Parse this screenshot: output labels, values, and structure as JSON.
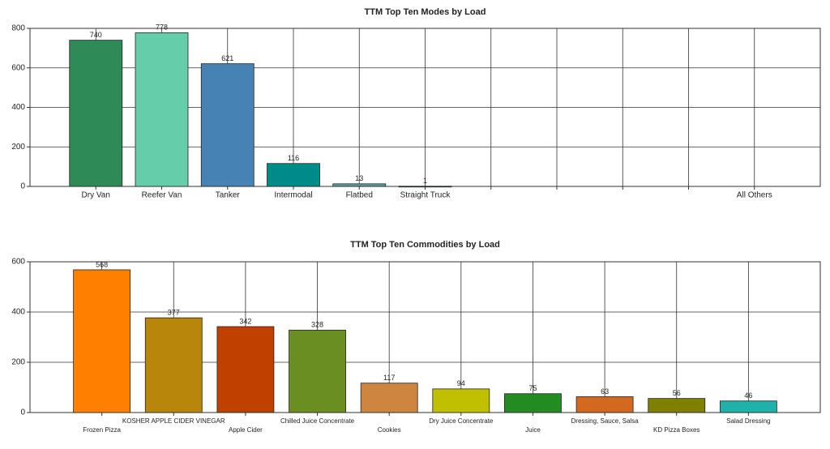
{
  "chart_data": [
    {
      "type": "bar",
      "title": "TTM Top Ten Modes by Load",
      "categories": [
        "Dry Van",
        "Reefer Van",
        "Tanker",
        "Intermodal",
        "Flatbed",
        "Straight Truck",
        null,
        null,
        null,
        null,
        "All Others"
      ],
      "values": [
        740,
        778,
        621,
        116,
        13,
        1,
        null,
        null,
        null,
        null,
        null
      ],
      "colors": [
        "#2e8b57",
        "#66cdaa",
        "#4682b4",
        "#008b8b",
        "#5f9ea0",
        "#3a5f5f",
        null,
        null,
        null,
        null,
        null
      ],
      "ylim": [
        0,
        800
      ],
      "yticks": [
        0,
        200,
        400,
        600,
        800
      ],
      "grid": true
    },
    {
      "type": "bar",
      "title": "TTM Top Ten Commodities by Load",
      "categories": [
        "Frozen Pizza",
        "KOSHER APPLE CIDER VINEGAR",
        "Apple Cider",
        "Chilled Juice Concentrate",
        "Cookies",
        "Dry Juice Concentrate",
        "Juice",
        "Dressing, Sauce, Salsa",
        "KD Pizza Boxes",
        "Salad Dressing"
      ],
      "values": [
        568,
        377,
        342,
        328,
        117,
        94,
        75,
        63,
        56,
        46
      ],
      "colors": [
        "#ff7f00",
        "#b8860b",
        "#c04000",
        "#6b8e23",
        "#cd853f",
        "#c0c000",
        "#228b22",
        "#d2691e",
        "#808000",
        "#20b2aa"
      ],
      "ylim": [
        0,
        600
      ],
      "yticks": [
        0,
        200,
        400,
        600
      ],
      "grid": true
    }
  ]
}
